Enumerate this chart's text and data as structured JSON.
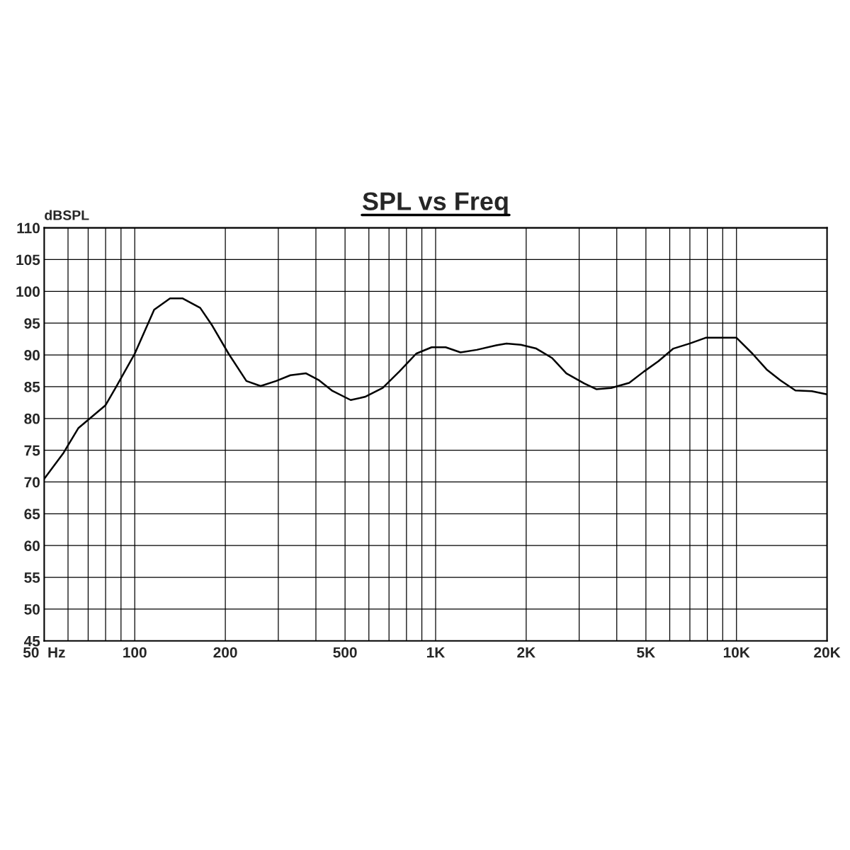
{
  "chart_data": {
    "type": "line",
    "title": "SPL vs Freq",
    "ylabel": "dBSPL",
    "log": "x",
    "grid": true,
    "marker": "none",
    "line_style": "solid",
    "xlim": [
      50,
      20000
    ],
    "ylim": [
      45,
      110
    ],
    "xticks": [
      {
        "value": 50,
        "label": "50  Hz"
      },
      {
        "value": 60,
        "label": null
      },
      {
        "value": 70,
        "label": null
      },
      {
        "value": 80,
        "label": null
      },
      {
        "value": 90,
        "label": null
      },
      100,
      200,
      {
        "value": 300,
        "label": null
      },
      {
        "value": 400,
        "label": null
      },
      500,
      {
        "value": 600,
        "label": null
      },
      {
        "value": 700,
        "label": null
      },
      {
        "value": 800,
        "label": null
      },
      {
        "value": 900,
        "label": null
      },
      {
        "value": 1000,
        "label": "1K"
      },
      {
        "value": 2000,
        "label": "2K"
      },
      {
        "value": 3000,
        "label": null
      },
      {
        "value": 4000,
        "label": null
      },
      {
        "value": 5000,
        "label": "5K"
      },
      {
        "value": 6000,
        "label": null
      },
      {
        "value": 7000,
        "label": null
      },
      {
        "value": 8000,
        "label": null
      },
      {
        "value": 9000,
        "label": null
      },
      {
        "value": 10000,
        "label": "10K"
      },
      {
        "value": 20000,
        "label": "20K"
      }
    ],
    "yticks": [
      45,
      50,
      55,
      60,
      65,
      70,
      75,
      80,
      85,
      90,
      95,
      100,
      105,
      110
    ],
    "series": [
      {
        "color": "#000000",
        "x": [
          50,
          58,
          65,
          80,
          87,
          100,
          116,
          131,
          144,
          165,
          181,
          205,
          235,
          262,
          295,
          329,
          371,
          410,
          452,
          522,
          582,
          667,
          758,
          862,
          970,
          1080,
          1210,
          1370,
          1590,
          1720,
          1920,
          2160,
          2440,
          2720,
          3120,
          3420,
          3830,
          4400,
          4930,
          5500,
          6170,
          7000,
          7900,
          10000,
          11300,
          12600,
          14000,
          15700,
          17800,
          20000
        ],
        "values": [
          70.5,
          74.6,
          78.5,
          82.1,
          85.1,
          90.2,
          97.1,
          98.9,
          98.9,
          97.4,
          94.6,
          90.2,
          85.9,
          85.1,
          85.9,
          86.8,
          87.1,
          86,
          84.4,
          82.9,
          83.4,
          84.8,
          87.4,
          90.2,
          91.2,
          91.2,
          90.4,
          90.8,
          91.5,
          91.8,
          91.6,
          91,
          89.5,
          87.1,
          85.5,
          84.6,
          84.8,
          85.6,
          87.4,
          89,
          91,
          91.8,
          92.7,
          92.7,
          90.2,
          87.7,
          86,
          84.4,
          84.3,
          83.8
        ]
      }
    ]
  }
}
